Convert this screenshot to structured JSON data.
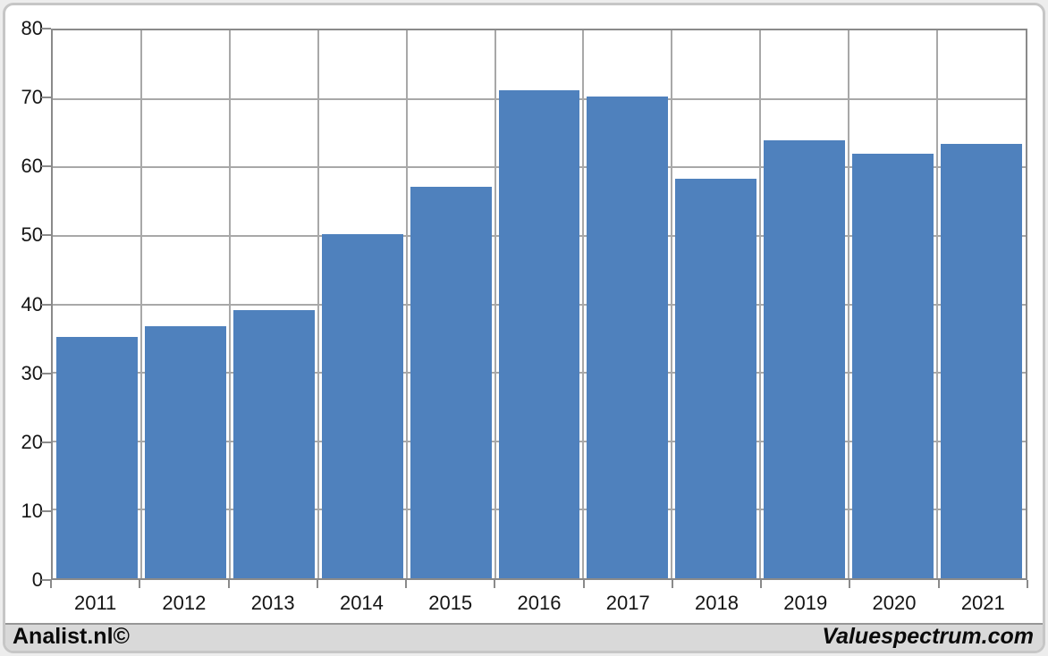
{
  "chart_data": {
    "type": "bar",
    "title": "",
    "xlabel": "",
    "ylabel": "",
    "categories": [
      "2011",
      "2012",
      "2013",
      "2014",
      "2015",
      "2016",
      "2017",
      "2018",
      "2019",
      "2020",
      "2021"
    ],
    "values": [
      35.2,
      36.8,
      39.1,
      50.3,
      57.2,
      71.3,
      70.4,
      58.3,
      64.0,
      62.0,
      63.4
    ],
    "ylim": [
      0,
      80
    ],
    "yticks": [
      "80",
      "70",
      "60",
      "50",
      "40",
      "30",
      "20",
      "10",
      "0"
    ],
    "grid": true,
    "legend": "none",
    "bar_color": "#4f81bd",
    "gridline_color": "#a8a8a8",
    "plot_border_color": "#8a8a8a"
  },
  "footer": {
    "left_brand": "Analist.nl©",
    "right_brand": "Valuespectrum.com"
  }
}
